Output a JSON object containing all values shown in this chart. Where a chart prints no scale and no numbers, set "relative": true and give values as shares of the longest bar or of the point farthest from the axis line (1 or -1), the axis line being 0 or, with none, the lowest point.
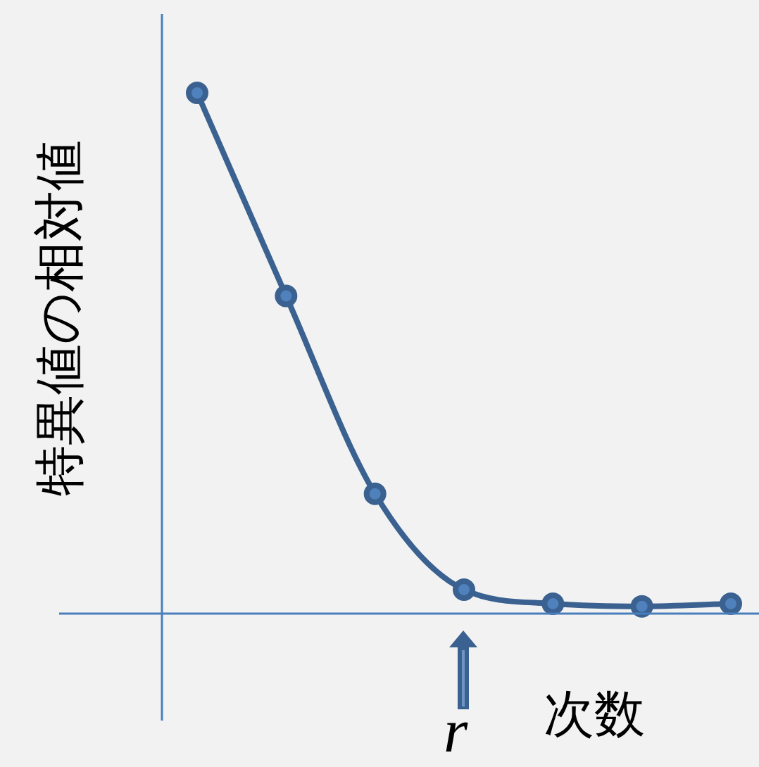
{
  "chart_data": {
    "type": "line",
    "relative": true,
    "ylabel": "特異値の相対値",
    "xlabel": "次数",
    "categories": [
      null,
      null,
      null,
      null,
      null,
      null,
      null
    ],
    "series": [
      {
        "color": "#3a6190",
        "values": [
          1,
          0.61,
          0.23,
          0.046,
          0.019,
          0.014,
          0.019
        ]
      }
    ],
    "marker": "circle",
    "line_style": "solid",
    "legend": false,
    "annotations": [
      "r"
    ]
  }
}
